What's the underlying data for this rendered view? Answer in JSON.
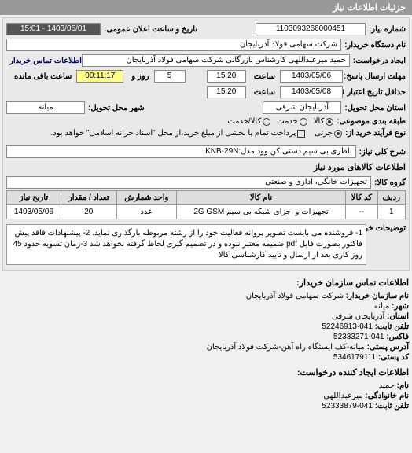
{
  "header": "جزئیات اطلاعات نیاز",
  "fields": {
    "needNumberLabel": "شماره نیاز:",
    "needNumber": "1103093266000451",
    "announceDateLabel": "تاریخ و ساعت اعلان عمومی:",
    "announceDate": "1403/05/01 - 15:01",
    "orgNameLabel": "نام دستگاه خریدار:",
    "orgName": "شرکت سهامی فولاد آذربایجان",
    "requesterLabel": "ایجاد درخواست:",
    "requester": "حمید میرعبداللهی کارشناس بازرگانی شرکت سهامی فولاد آذربایجان",
    "buyerContactLabel": "اطلاعات تماس خریدار",
    "deadlineLabel": "مهلت ارسال پاسخ:",
    "toDateLabel": "تا تاریخ:",
    "deadlineDate": "1403/05/06",
    "timeLabel": "ساعت",
    "deadlineTime": "15:20",
    "andLabel": "روز و",
    "daysRemain": "5",
    "timeRemain": "00:11:17",
    "remainLabel": "ساعت باقی مانده",
    "validityLabel": "حداقل تاریخ اعتبار قیمت: تا تاریخ:",
    "validityDate": "1403/05/08",
    "validityTime": "15:20",
    "provinceLabel": "استان محل تحویل:",
    "province": "آذربایجان شرقی",
    "cityLabel": "شهر محل تحویل:",
    "city": "میانه",
    "subjectTypeLabel": "طبقه بندی موضوعی:",
    "radioGoods": "کالا",
    "radioService": "خدمت",
    "radioBoth": "کالا/خدمت",
    "processTypeLabel": "نوع فرآیند خرید از:",
    "radioPartial": "جزئی",
    "checkPaymentLabel": "پرداخت تمام یا بخشی از مبلغ خرید،از محل \"اسناد خزانه اسلامی\" خواهد بود.",
    "needDescLabel": "شرح کلی نیاز:",
    "needDesc": "باطری بی سیم دستی کن وود مدل:KNB-29N",
    "goodsInfoTitle": "اطلاعات کالاهای مورد نیاز",
    "goodsGroupLabel": "گروه کالا:",
    "goodsGroup": "تجهیزات خانگی، اداری و صنعتی",
    "buyerDescLabel": "توضیحات خریدار:",
    "buyerDesc": "1- فروشنده می بایست تصویر پروانه فعالیت خود را از رشته مربوطه بارگذاری نماید. 2- پیشنهادات فاقد پیش فاکتور بصورت فایل pdf ضمیمه معتبر نبوده و در تصمیم گیری لحاظ گرفته نخواهد شد 3-زمان تسویه حدود 45 روز کاری بعد از ارسال و تایید کارشناسی کالا"
  },
  "table": {
    "headers": [
      "ردیف",
      "کد کالا",
      "نام کالا",
      "واحد شمارش",
      "تعداد / مقدار",
      "تاریخ نیاز"
    ],
    "rows": [
      [
        "1",
        "--",
        "تجهیزات و اجزای شبکه بی سیم 2G GSM",
        "عدد",
        "20",
        "1403/05/06"
      ]
    ]
  },
  "contact": {
    "title": "اطلاعات تماس سازمان خریدار:",
    "orgLabel": "نام سازمان خریدار:",
    "org": "شرکت سهامی فولاد آذربایجان",
    "cityLabel": "شهر:",
    "city": "میانه",
    "provLabel": "استان:",
    "prov": "آذربایجان شرقی",
    "phoneLabel": "تلفن ثابت:",
    "phone": "041-52246913",
    "faxLabel": "فاکس:",
    "fax": "041-52333271",
    "addrLabel": "آدرس پستی:",
    "addr": "میانه-کف ایستگاه راه آهن-شرکت فولاد آذربایجان",
    "postLabel": "کد پستی:",
    "post": "5346179111",
    "creatorTitle": "اطلاعات ایجاد کننده درخواست:",
    "nameLabel": "نام:",
    "name": "حمید",
    "lnameLabel": "نام خانوادگی:",
    "lname": "میرعبداللهی",
    "cphoneLabel": "تلفن ثابت:",
    "cphone": "041-52333879"
  },
  "colors": {
    "headerBg": "#999999",
    "panelBg": "#e9e9e9",
    "darkBox": "#555555",
    "yellow": "#ffff88"
  }
}
